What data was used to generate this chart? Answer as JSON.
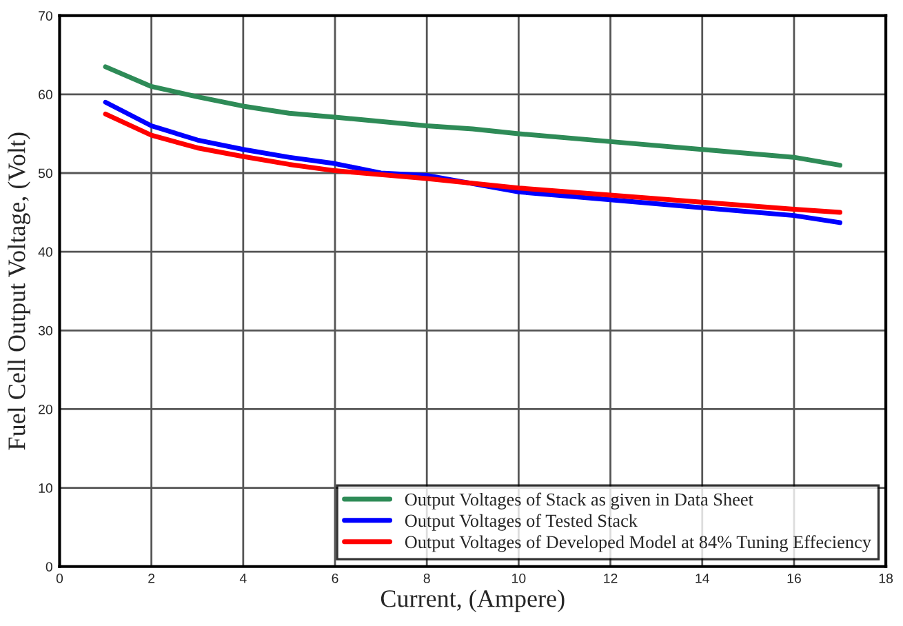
{
  "chart_data": {
    "type": "line",
    "xlabel": "Current, (Ampere)",
    "ylabel": "Fuel Cell Output Voltage, (Volt)",
    "xlim": [
      0,
      18
    ],
    "xticks": [
      0,
      2,
      4,
      6,
      8,
      10,
      12,
      14,
      16,
      18
    ],
    "ylim": [
      0,
      70
    ],
    "yticks": [
      0,
      10,
      20,
      30,
      40,
      50,
      60,
      70
    ],
    "grid": true,
    "legend": "bottom right",
    "marker": "none",
    "line_style": "solid",
    "series": [
      {
        "name": "Output Voltages of Stack as given in Data Sheet",
        "color": "#2e8b57",
        "x": [
          1,
          2,
          3,
          4,
          5,
          6,
          8,
          9,
          10,
          12,
          14,
          16,
          17
        ],
        "values": [
          63.5,
          61,
          59.7,
          58.5,
          57.6,
          57.1,
          56,
          55.6,
          55,
          54,
          53,
          52,
          51
        ]
      },
      {
        "name": "Output Voltages of Tested Stack",
        "color": "#0000ff",
        "x": [
          1,
          2,
          3,
          4,
          5,
          6,
          7,
          8,
          10,
          12,
          14,
          16,
          17
        ],
        "values": [
          59,
          56,
          54.2,
          53,
          52,
          51.2,
          50,
          49.7,
          47.6,
          46.6,
          45.6,
          44.6,
          43.7
        ]
      },
      {
        "name": "Output Voltages of Developed Model at 84% Tuning Effeciency",
        "color": "#ff0000",
        "x": [
          1,
          2,
          3,
          4,
          5,
          6,
          8,
          10,
          12,
          14,
          16,
          17
        ],
        "values": [
          57.5,
          54.8,
          53.2,
          52.1,
          51.1,
          50.3,
          49.3,
          48.1,
          47.2,
          46.3,
          45.4,
          45
        ]
      }
    ]
  }
}
